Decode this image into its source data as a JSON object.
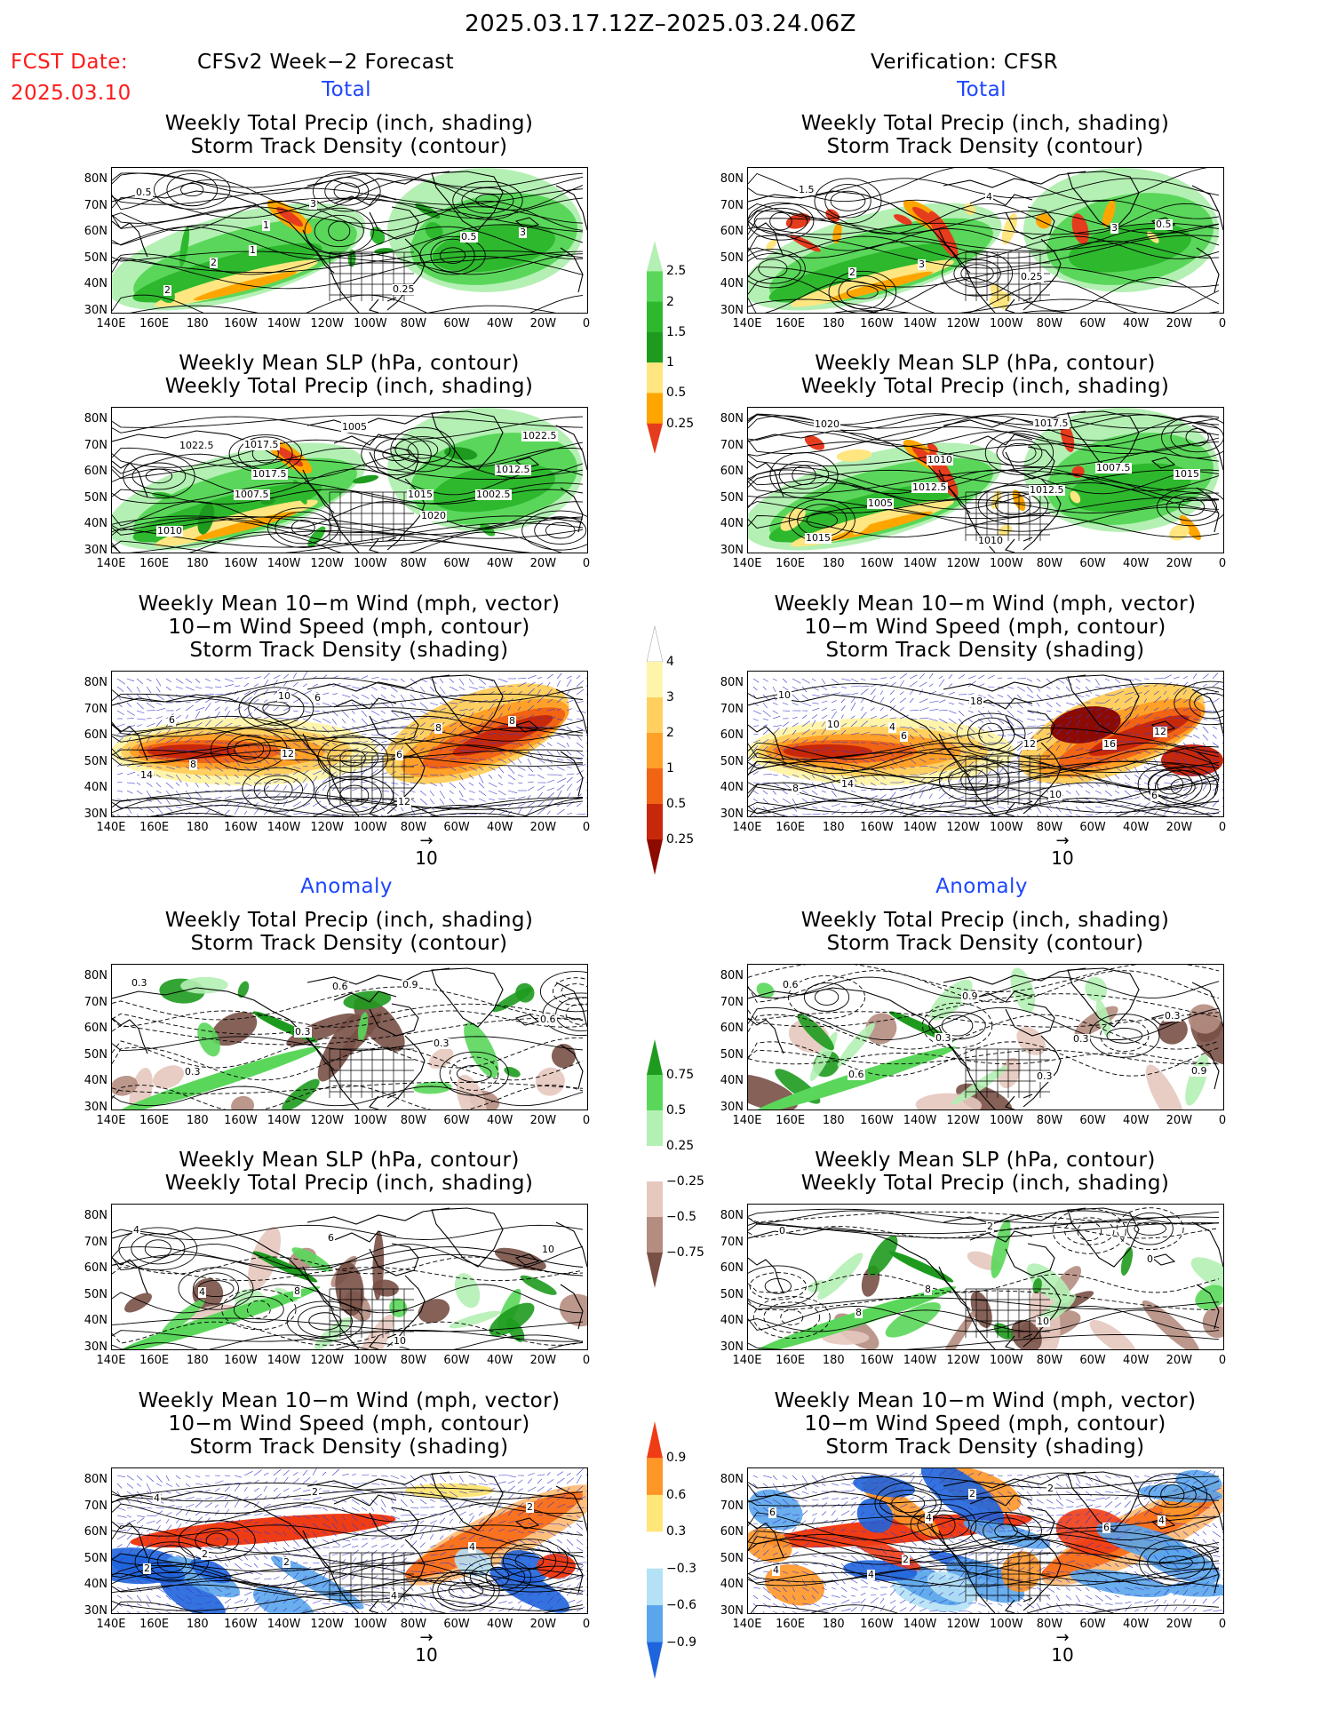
{
  "header": {
    "period": "2025.03.17.12Z–2025.03.24.06Z",
    "fcst_label": "FCST Date:",
    "fcst_date": "2025.03.10",
    "left_title": "CFSv2 Week−2 Forecast",
    "right_title": "Verification: CFSR",
    "total": "Total",
    "anomaly": "Anomaly"
  },
  "titles": {
    "precip_storm": [
      "Weekly Total Precip (inch, shading)",
      "Storm Track Density (contour)"
    ],
    "slp_precip": [
      "Weekly Mean SLP (hPa, contour)",
      "Weekly Total Precip (inch, shading)"
    ],
    "wind": [
      "Weekly Mean 10−m Wind (mph, vector)",
      "10−m Wind Speed (mph, contour)",
      "Storm Track Density (shading)"
    ]
  },
  "axes": {
    "lat": [
      "80N",
      "70N",
      "60N",
      "50N",
      "40N",
      "30N"
    ],
    "lon": [
      "140E",
      "160E",
      "180",
      "160W",
      "140W",
      "120W",
      "100W",
      "80W",
      "60W",
      "40W",
      "20W",
      "0"
    ]
  },
  "vector_ref": "10",
  "colorbars": {
    "precip_total": {
      "labels": [
        "0.25",
        "0.5",
        "1",
        "1.5",
        "2",
        "2.5"
      ],
      "colors": [
        "#b4f0b4",
        "#5ad75a",
        "#2eb82e",
        "#1e9b1e",
        "#ffe680",
        "#ffa500",
        "#e63c1e"
      ]
    },
    "storm_total": {
      "labels": [
        "0.25",
        "0.5",
        "1",
        "2",
        "3",
        "4"
      ],
      "colors": [
        "#ffffff",
        "#fff5aa",
        "#ffd060",
        "#ffa028",
        "#f06414",
        "#c8280a",
        "#8c0a00"
      ]
    },
    "precip_anom": {
      "labels": [
        "0.75",
        "0.5",
        "0.25",
        "−0.25",
        "−0.5",
        "−0.75"
      ],
      "colors": [
        "#1e9b1e",
        "#5ad75a",
        "#b4f0b4",
        "#ffffff",
        "#e6c8be",
        "#b48c80",
        "#785046"
      ]
    },
    "storm_anom": {
      "labels": [
        "0.9",
        "0.6",
        "0.3",
        "−0.3",
        "−0.6",
        "−0.9"
      ],
      "colors": [
        "#f03c14",
        "#ff9628",
        "#ffe678",
        "#ffffff",
        "#b4e1f5",
        "#5aa5eb",
        "#1e64dc"
      ]
    }
  },
  "map_labels": {
    "r1l": [
      "0.5",
      "1",
      "0.25",
      "3",
      "2",
      "3",
      "0.5",
      "2",
      "1"
    ],
    "r1r": [
      "1.5",
      "3",
      "0.25",
      "0.5",
      "2",
      "4",
      "3"
    ],
    "r2l": [
      "1022.5",
      "1017.5",
      "1020",
      "1012.5",
      "1007.5",
      "1005",
      "1002.5",
      "1010",
      "1017.5",
      "1015",
      "1022.5"
    ],
    "r2r": [
      "1020",
      "1012.5",
      "1017.5",
      "1015",
      "1005",
      "1010",
      "1007.5",
      "1015",
      "1010",
      "1012.5"
    ],
    "r3l": [
      "6",
      "12",
      "12",
      "8",
      "8",
      "6",
      "8",
      "14",
      "10",
      "6"
    ],
    "r3r": [
      "10",
      "6",
      "10",
      "12",
      "14",
      "18",
      "16",
      "8",
      "4",
      "12",
      "6",
      "10"
    ],
    "r4l": [
      "0.3",
      "0.3",
      "0.9",
      "0.6",
      "0.3",
      "0.6",
      "0.3"
    ],
    "r4r": [
      "0.6",
      "0.3",
      "0.3",
      "0.3",
      "0.6",
      "0.9",
      "0.3",
      "0.9"
    ],
    "r5l": [
      "4",
      "8",
      "10",
      "10",
      "4",
      "6"
    ],
    "r5r": [
      "0",
      "8",
      "10",
      "0",
      "8",
      "2"
    ],
    "r6l": [
      "4",
      "2",
      "4",
      "2",
      "2",
      "2",
      "4",
      "2"
    ],
    "r6r": [
      "6",
      "2",
      "2",
      "4",
      "4",
      "2",
      "6",
      "4",
      "4"
    ]
  }
}
